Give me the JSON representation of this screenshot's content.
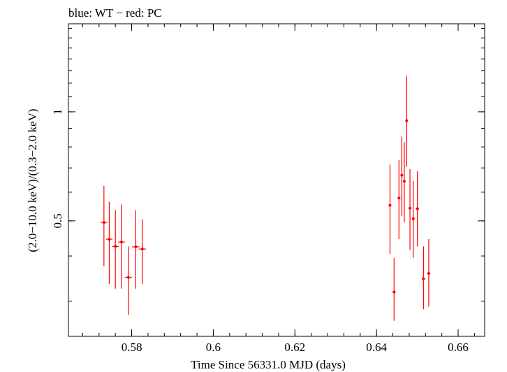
{
  "chart_data": {
    "type": "scatter",
    "title": "blue: WT − red: PC",
    "xlabel": "Time Since 56331.0 MJD (days)",
    "ylabel": "(2.0−10.0 keV)/(0.3−2.0 keV)",
    "yscale": "log",
    "xlim": [
      0.5645,
      0.6665
    ],
    "ylim": [
      0.24,
      1.75
    ],
    "x_ticks": [
      0.58,
      0.6,
      0.62,
      0.64,
      0.66
    ],
    "x_tick_labels": [
      "0.58",
      "0.6",
      "0.62",
      "0.64",
      "0.66"
    ],
    "y_major_ticks": [
      0.5,
      1
    ],
    "y_tick_labels": [
      "0.5",
      "1"
    ],
    "grid": false,
    "series": [
      {
        "name": "PC",
        "color": "#ff0000",
        "points": [
          {
            "x": 0.5732,
            "xerr": 0.0008,
            "y": 0.495,
            "ylo": 0.375,
            "yhi": 0.625
          },
          {
            "x": 0.5745,
            "xerr": 0.0008,
            "y": 0.445,
            "ylo": 0.335,
            "yhi": 0.565
          },
          {
            "x": 0.576,
            "xerr": 0.0008,
            "y": 0.425,
            "ylo": 0.325,
            "yhi": 0.535
          },
          {
            "x": 0.5775,
            "xerr": 0.0008,
            "y": 0.437,
            "ylo": 0.325,
            "yhi": 0.555
          },
          {
            "x": 0.5792,
            "xerr": 0.0009,
            "y": 0.349,
            "ylo": 0.275,
            "yhi": 0.425
          },
          {
            "x": 0.581,
            "xerr": 0.0009,
            "y": 0.424,
            "ylo": 0.325,
            "yhi": 0.535
          },
          {
            "x": 0.5826,
            "xerr": 0.0009,
            "y": 0.418,
            "ylo": 0.335,
            "yhi": 0.505
          },
          {
            "x": 0.6433,
            "xerr": 0.0003,
            "y": 0.552,
            "ylo": 0.405,
            "yhi": 0.715
          },
          {
            "x": 0.6443,
            "xerr": 0.0004,
            "y": 0.318,
            "ylo": 0.265,
            "yhi": 0.395
          },
          {
            "x": 0.6455,
            "xerr": 0.0003,
            "y": 0.578,
            "ylo": 0.445,
            "yhi": 0.735
          },
          {
            "x": 0.6462,
            "xerr": 0.0002,
            "y": 0.668,
            "ylo": 0.515,
            "yhi": 0.855
          },
          {
            "x": 0.6468,
            "xerr": 0.0002,
            "y": 0.643,
            "ylo": 0.495,
            "yhi": 0.825
          },
          {
            "x": 0.6474,
            "xerr": 0.0002,
            "y": 0.945,
            "ylo": 0.705,
            "yhi": 1.255
          },
          {
            "x": 0.6482,
            "xerr": 0.0003,
            "y": 0.542,
            "ylo": 0.415,
            "yhi": 0.695
          },
          {
            "x": 0.649,
            "xerr": 0.0002,
            "y": 0.507,
            "ylo": 0.395,
            "yhi": 0.645
          },
          {
            "x": 0.65,
            "xerr": 0.0004,
            "y": 0.54,
            "ylo": 0.425,
            "yhi": 0.685
          },
          {
            "x": 0.6515,
            "xerr": 0.0004,
            "y": 0.346,
            "ylo": 0.285,
            "yhi": 0.425
          },
          {
            "x": 0.6528,
            "xerr": 0.0004,
            "y": 0.358,
            "ylo": 0.29,
            "yhi": 0.445
          }
        ]
      }
    ]
  }
}
